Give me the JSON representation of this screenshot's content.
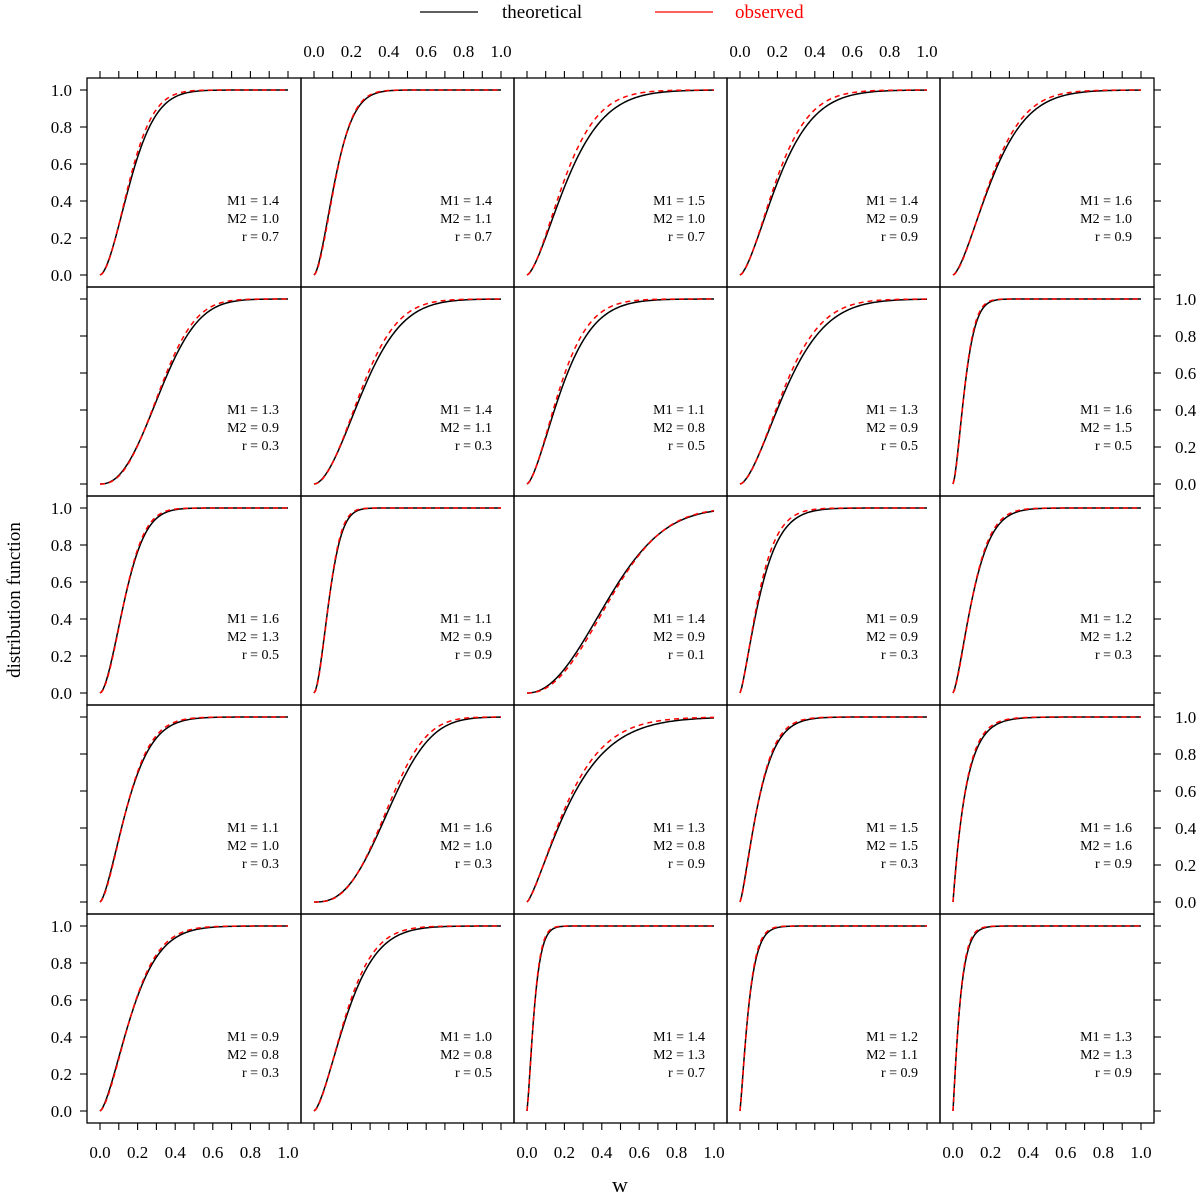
{
  "legend": {
    "theoretical_label": "theoretical",
    "observed_label": "observed",
    "theoretical_color": "#000000",
    "observed_color": "#ff0000",
    "placement": "top-center"
  },
  "axes": {
    "xlabel": "w",
    "ylabel": "distribution function",
    "x_ticks": [
      "0.0",
      "0.2",
      "0.4",
      "0.6",
      "0.8",
      "1.0"
    ],
    "y_ticks": [
      "0.0",
      "0.2",
      "0.4",
      "0.6",
      "0.8",
      "1.0"
    ],
    "xlim": [
      0,
      1
    ],
    "ylim": [
      0,
      1
    ]
  },
  "chart_data": {
    "type": "line",
    "layout": "lattice 5x5",
    "xlabel": "w",
    "ylabel": "distribution function",
    "xlim": [
      0,
      1
    ],
    "ylim": [
      0,
      1
    ],
    "grid": false,
    "series_names": [
      "theoretical",
      "observed"
    ],
    "panels": [
      {
        "M1": "1.4",
        "M2": "1.0",
        "r": "0.7",
        "x_at_half": 0.16,
        "observed_x_at_half": 0.155
      },
      {
        "M1": "1.4",
        "M2": "1.1",
        "r": "0.7",
        "x_at_half": 0.11,
        "observed_x_at_half": 0.112
      },
      {
        "M1": "1.5",
        "M2": "1.0",
        "r": "0.7",
        "x_at_half": 0.21,
        "observed_x_at_half": 0.195
      },
      {
        "M1": "1.4",
        "M2": "0.9",
        "r": "0.9",
        "x_at_half": 0.2,
        "observed_x_at_half": 0.19
      },
      {
        "M1": "1.6",
        "M2": "1.0",
        "r": "0.9",
        "x_at_half": 0.2,
        "observed_x_at_half": 0.195
      },
      {
        "M1": "1.3",
        "M2": "0.9",
        "r": "0.3",
        "x_at_half": 0.32,
        "observed_x_at_half": 0.315
      },
      {
        "M1": "1.4",
        "M2": "1.1",
        "r": "0.3",
        "x_at_half": 0.26,
        "observed_x_at_half": 0.25
      },
      {
        "M1": "1.1",
        "M2": "0.8",
        "r": "0.5",
        "x_at_half": 0.18,
        "observed_x_at_half": 0.17
      },
      {
        "M1": "1.3",
        "M2": "0.9",
        "r": "0.5",
        "x_at_half": 0.24,
        "observed_x_at_half": 0.23
      },
      {
        "M1": "1.6",
        "M2": "1.5",
        "r": "0.5",
        "x_at_half": 0.06,
        "observed_x_at_half": 0.06
      },
      {
        "M1": "1.6",
        "M2": "1.3",
        "r": "0.5",
        "x_at_half": 0.13,
        "observed_x_at_half": 0.13
      },
      {
        "M1": "1.1",
        "M2": "0.9",
        "r": "0.9",
        "x_at_half": 0.08,
        "observed_x_at_half": 0.08
      },
      {
        "M1": "1.4",
        "M2": "0.9",
        "r": "0.1",
        "x_at_half": 0.43,
        "observed_x_at_half": 0.44
      },
      {
        "M1": "0.9",
        "M2": "0.9",
        "r": "0.3",
        "x_at_half": 0.1,
        "observed_x_at_half": 0.095
      },
      {
        "M1": "1.2",
        "M2": "1.2",
        "r": "0.3",
        "x_at_half": 0.1,
        "observed_x_at_half": 0.1
      },
      {
        "M1": "1.1",
        "M2": "1.0",
        "r": "0.3",
        "x_at_half": 0.14,
        "observed_x_at_half": 0.14
      },
      {
        "M1": "1.6",
        "M2": "1.0",
        "r": "0.3",
        "x_at_half": 0.4,
        "observed_x_at_half": 0.39
      },
      {
        "M1": "1.3",
        "M2": "0.8",
        "r": "0.9",
        "x_at_half": 0.21,
        "observed_x_at_half": 0.2
      },
      {
        "M1": "1.5",
        "M2": "1.5",
        "r": "0.3",
        "x_at_half": 0.09,
        "observed_x_at_half": 0.09
      },
      {
        "M1": "1.6",
        "M2": "1.6",
        "r": "0.9",
        "x_at_half": 0.05,
        "observed_x_at_half": 0.05
      },
      {
        "M1": "0.9",
        "M2": "0.8",
        "r": "0.3",
        "x_at_half": 0.16,
        "observed_x_at_half": 0.16
      },
      {
        "M1": "1.0",
        "M2": "0.8",
        "r": "0.5",
        "x_at_half": 0.17,
        "observed_x_at_half": 0.165
      },
      {
        "M1": "1.4",
        "M2": "1.3",
        "r": "0.7",
        "x_at_half": 0.035,
        "observed_x_at_half": 0.035
      },
      {
        "M1": "1.2",
        "M2": "1.1",
        "r": "0.9",
        "x_at_half": 0.04,
        "observed_x_at_half": 0.04
      },
      {
        "M1": "1.3",
        "M2": "1.3",
        "r": "0.9",
        "x_at_half": 0.03,
        "observed_x_at_half": 0.03
      }
    ]
  }
}
